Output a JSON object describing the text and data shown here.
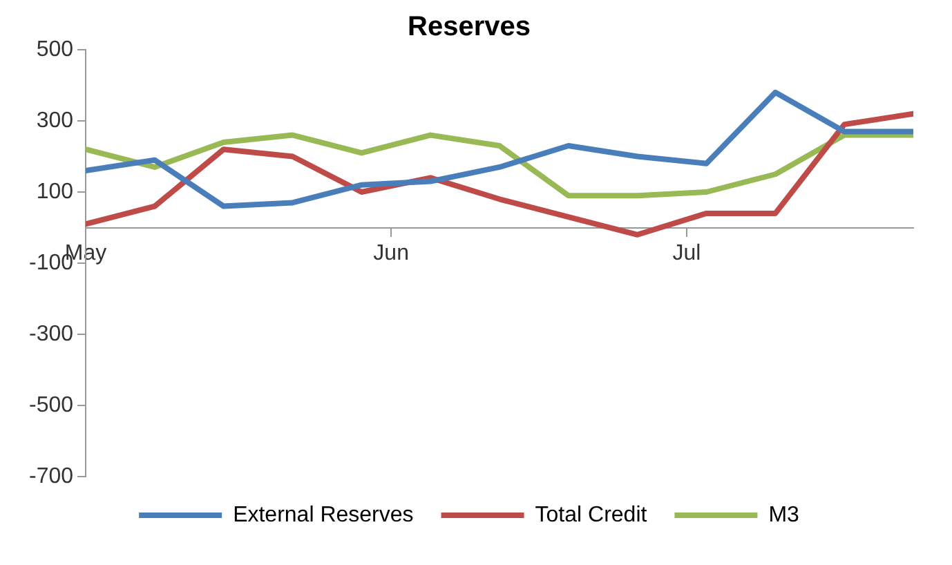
{
  "chart_data": {
    "type": "line",
    "title": "Reserves",
    "x": [
      "--05-01",
      "--05-08",
      "--05-15",
      "--05-22",
      "--05-29",
      "--06-05",
      "--06-12",
      "--06-19",
      "--06-26",
      "--07-03",
      "--07-10",
      "--07-17",
      "--07-24"
    ],
    "series": [
      {
        "name": "External Reserves",
        "color": "#4a7ebb",
        "values": [
          160,
          190,
          60,
          70,
          120,
          130,
          170,
          230,
          200,
          180,
          380,
          270,
          270
        ]
      },
      {
        "name": "Total Credit",
        "color": "#be4b48",
        "values": [
          10,
          60,
          220,
          200,
          100,
          140,
          80,
          30,
          -20,
          40,
          40,
          290,
          320
        ]
      },
      {
        "name": "M3",
        "color": "#98b954",
        "values": [
          220,
          170,
          240,
          260,
          210,
          260,
          230,
          90,
          90,
          100,
          150,
          260,
          260
        ]
      }
    ],
    "ylim": [
      -700,
      500
    ],
    "yticks": [
      500,
      300,
      100,
      -100,
      -300,
      -500,
      -700
    ],
    "xlim": [
      "--05-01",
      "--07-24"
    ],
    "xticks": [
      {
        "value": "--05-01",
        "label": "May"
      },
      {
        "value": "--06-01",
        "label": "Jun"
      },
      {
        "value": "--07-01",
        "label": "Jul"
      }
    ],
    "legend": "bottom",
    "grid": false,
    "marker": "none",
    "line_style": "solid"
  }
}
